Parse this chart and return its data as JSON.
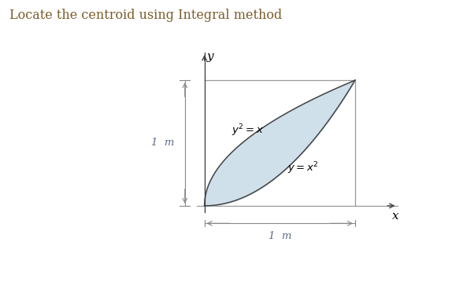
{
  "title": "Locate the centroid using Integral method",
  "title_color": "#7B5C2A",
  "title_fontsize": 11.5,
  "background_color": "#ffffff",
  "fill_color": "#b8d0e0",
  "fill_alpha": 0.65,
  "curve_color": "#444444",
  "box_color": "#999999",
  "axis_color": "#444444",
  "dim_color": "#888888",
  "label_y2_eq_x": "$y^2 = x$",
  "label_y_eq_x2": "$y = x^2$",
  "label_1m_vertical": "1  m",
  "label_1m_horizontal": "1  m",
  "label_x": "x",
  "label_y": "y",
  "dim_label_color": "#5a6a8a"
}
